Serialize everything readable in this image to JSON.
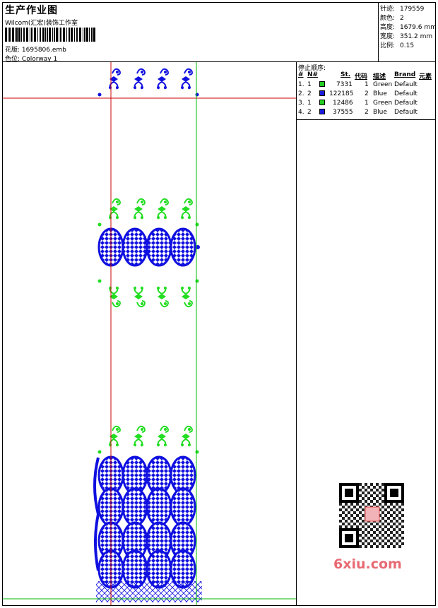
{
  "header": {
    "title": "生产作业图",
    "company": "Wilcom(汇宏)装饰工作室",
    "design_label": "花版:",
    "design_value": "1695806.emb",
    "colorway_label": "色位:",
    "colorway_value": "Colorway 1"
  },
  "stats": [
    {
      "label": "针迹:",
      "value": "179559"
    },
    {
      "label": "颜色:",
      "value": "2"
    },
    {
      "label": "高度:",
      "value": "1679.6 mm"
    },
    {
      "label": "宽度:",
      "value": "351.2 mm"
    },
    {
      "label": "比例:",
      "value": "0.15"
    }
  ],
  "stop_sequence": {
    "title": "停止顺序:",
    "columns": [
      "#",
      "N#",
      "St.",
      "代码",
      "描述",
      "Brand",
      "元素"
    ],
    "rows": [
      {
        "index": "1.",
        "n": "1",
        "stitches": "7331",
        "code": "1",
        "desc": "Green",
        "brand": "Default",
        "color": "#22cc22"
      },
      {
        "index": "2.",
        "n": "2",
        "stitches": "122185",
        "code": "2",
        "desc": "Blue",
        "brand": "Default",
        "color": "#1a1adc"
      },
      {
        "index": "3.",
        "n": "1",
        "stitches": "12486",
        "code": "1",
        "desc": "Green",
        "brand": "Default",
        "color": "#22cc22"
      },
      {
        "index": "4.",
        "n": "2",
        "stitches": "37555",
        "code": "2",
        "desc": "Blue",
        "brand": "Default",
        "color": "#1a1adc"
      }
    ]
  },
  "colors": {
    "green": "#22dd22",
    "blue": "#1010e0",
    "guide_red": "#cc0000",
    "guide_green": "#00bb00"
  },
  "watermark": "6xiu.com",
  "qr_icon": "qr-code-icon"
}
